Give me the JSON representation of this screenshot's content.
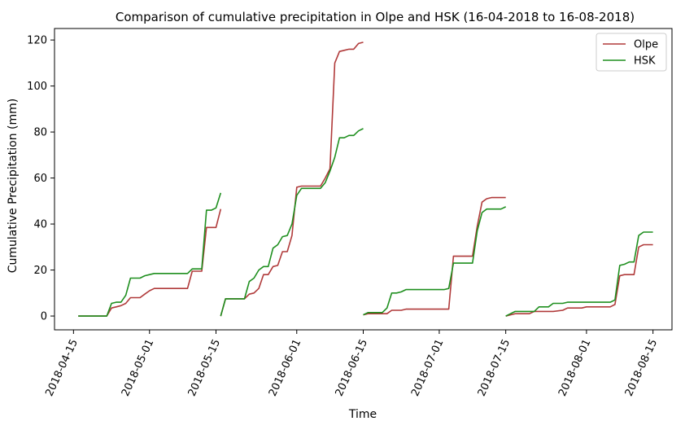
{
  "chart_data": {
    "type": "line",
    "title": "Comparison of cumulative precipitation in Olpe and HSK (16-04-2018 to 16-08-2018)",
    "xlabel": "Time",
    "ylabel": "Cumulative Precipitation (mm)",
    "xlim": [
      "2018-04-11",
      "2018-08-19"
    ],
    "ylim": [
      -6,
      125
    ],
    "x_ticks": [
      "2018-04-15",
      "2018-05-01",
      "2018-05-15",
      "2018-06-01",
      "2018-06-15",
      "2018-07-01",
      "2018-07-15",
      "2018-08-01",
      "2018-08-15"
    ],
    "y_ticks": [
      0,
      20,
      40,
      60,
      80,
      100,
      120
    ],
    "grid": false,
    "legend_position": "top-right",
    "series": [
      {
        "name": "Olpe",
        "color": "#b03a3a",
        "segments": [
          [
            [
              "2018-04-16",
              0
            ],
            [
              "2018-04-19",
              0
            ],
            [
              "2018-04-22",
              0
            ],
            [
              "2018-04-23",
              3.5
            ],
            [
              "2018-04-24",
              4
            ],
            [
              "2018-04-25",
              4.5
            ],
            [
              "2018-04-26",
              5.5
            ],
            [
              "2018-04-27",
              8
            ],
            [
              "2018-04-28",
              8
            ],
            [
              "2018-04-29",
              8
            ],
            [
              "2018-04-30",
              9.5
            ],
            [
              "2018-05-01",
              11
            ],
            [
              "2018-05-02",
              12
            ],
            [
              "2018-05-04",
              12
            ],
            [
              "2018-05-07",
              12
            ],
            [
              "2018-05-09",
              12
            ],
            [
              "2018-05-10",
              19.5
            ],
            [
              "2018-05-11",
              19.5
            ],
            [
              "2018-05-12",
              19.5
            ],
            [
              "2018-05-13",
              38.5
            ],
            [
              "2018-05-14",
              38.5
            ],
            [
              "2018-05-15",
              38.5
            ],
            [
              "2018-05-16",
              46.5
            ]
          ],
          [
            [
              "2018-05-16",
              0
            ],
            [
              "2018-05-17",
              7.5
            ],
            [
              "2018-05-18",
              7.5
            ],
            [
              "2018-05-19",
              7.5
            ],
            [
              "2018-05-21",
              7.5
            ],
            [
              "2018-05-22",
              9.5
            ],
            [
              "2018-05-23",
              10
            ],
            [
              "2018-05-24",
              12
            ],
            [
              "2018-05-25",
              18
            ],
            [
              "2018-05-26",
              18
            ],
            [
              "2018-05-27",
              21.5
            ],
            [
              "2018-05-28",
              22
            ],
            [
              "2018-05-29",
              28
            ],
            [
              "2018-05-30",
              28
            ],
            [
              "2018-05-31",
              35
            ],
            [
              "2018-06-01",
              56
            ],
            [
              "2018-06-02",
              56.5
            ],
            [
              "2018-06-05",
              56.5
            ],
            [
              "2018-06-06",
              56.5
            ],
            [
              "2018-06-07",
              60
            ],
            [
              "2018-06-08",
              64
            ],
            [
              "2018-06-09",
              110
            ],
            [
              "2018-06-10",
              115
            ],
            [
              "2018-06-11",
              115.5
            ],
            [
              "2018-06-12",
              116
            ],
            [
              "2018-06-13",
              116
            ],
            [
              "2018-06-14",
              118.5
            ],
            [
              "2018-06-15",
              119
            ]
          ],
          [
            [
              "2018-06-15",
              0.5
            ],
            [
              "2018-06-16",
              1
            ],
            [
              "2018-06-17",
              1
            ],
            [
              "2018-06-19",
              1
            ],
            [
              "2018-06-20",
              1
            ],
            [
              "2018-06-21",
              2.5
            ],
            [
              "2018-06-22",
              2.5
            ],
            [
              "2018-06-23",
              2.5
            ],
            [
              "2018-06-24",
              3
            ],
            [
              "2018-06-25",
              3
            ],
            [
              "2018-06-29",
              3
            ],
            [
              "2018-07-02",
              3
            ],
            [
              "2018-07-03",
              3
            ],
            [
              "2018-07-04",
              26
            ],
            [
              "2018-07-05",
              26
            ],
            [
              "2018-07-07",
              26
            ],
            [
              "2018-07-08",
              26
            ],
            [
              "2018-07-09",
              39
            ],
            [
              "2018-07-10",
              49.5
            ],
            [
              "2018-07-11",
              51
            ],
            [
              "2018-07-12",
              51.5
            ],
            [
              "2018-07-15",
              51.5
            ]
          ],
          [
            [
              "2018-07-15",
              0
            ],
            [
              "2018-07-16",
              0.5
            ],
            [
              "2018-07-17",
              1
            ],
            [
              "2018-07-19",
              1
            ],
            [
              "2018-07-20",
              1
            ],
            [
              "2018-07-21",
              2
            ],
            [
              "2018-07-22",
              2
            ],
            [
              "2018-07-25",
              2
            ],
            [
              "2018-07-27",
              2.5
            ],
            [
              "2018-07-28",
              3.5
            ],
            [
              "2018-07-29",
              3.5
            ],
            [
              "2018-07-30",
              3.5
            ],
            [
              "2018-07-31",
              3.5
            ],
            [
              "2018-08-01",
              4
            ],
            [
              "2018-08-05",
              4
            ],
            [
              "2018-08-06",
              4
            ],
            [
              "2018-08-07",
              5
            ],
            [
              "2018-08-08",
              17.5
            ],
            [
              "2018-08-09",
              18
            ],
            [
              "2018-08-10",
              18
            ],
            [
              "2018-08-11",
              18
            ],
            [
              "2018-08-12",
              30
            ],
            [
              "2018-08-13",
              31
            ],
            [
              "2018-08-14",
              31
            ],
            [
              "2018-08-15",
              31
            ]
          ]
        ]
      },
      {
        "name": "HSK",
        "color": "#1f8f1f",
        "segments": [
          [
            [
              "2018-04-16",
              0
            ],
            [
              "2018-04-19",
              0
            ],
            [
              "2018-04-21",
              0
            ],
            [
              "2018-04-22",
              0
            ],
            [
              "2018-04-23",
              5.5
            ],
            [
              "2018-04-24",
              6
            ],
            [
              "2018-04-25",
              6
            ],
            [
              "2018-04-26",
              9
            ],
            [
              "2018-04-27",
              16.5
            ],
            [
              "2018-04-28",
              16.5
            ],
            [
              "2018-04-29",
              16.5
            ],
            [
              "2018-04-30",
              17.5
            ],
            [
              "2018-05-01",
              18
            ],
            [
              "2018-05-02",
              18.5
            ],
            [
              "2018-05-05",
              18.5
            ],
            [
              "2018-05-07",
              18.5
            ],
            [
              "2018-05-09",
              18.5
            ],
            [
              "2018-05-10",
              20.5
            ],
            [
              "2018-05-11",
              20.5
            ],
            [
              "2018-05-12",
              20.5
            ],
            [
              "2018-05-13",
              46
            ],
            [
              "2018-05-14",
              46
            ],
            [
              "2018-05-15",
              47
            ],
            [
              "2018-05-16",
              53.5
            ]
          ],
          [
            [
              "2018-05-16",
              0
            ],
            [
              "2018-05-17",
              7.5
            ],
            [
              "2018-05-18",
              7.5
            ],
            [
              "2018-05-20",
              7.5
            ],
            [
              "2018-05-21",
              7.5
            ],
            [
              "2018-05-22",
              15
            ],
            [
              "2018-05-23",
              16.5
            ],
            [
              "2018-05-24",
              20
            ],
            [
              "2018-05-25",
              21.5
            ],
            [
              "2018-05-26",
              21.5
            ],
            [
              "2018-05-27",
              29.5
            ],
            [
              "2018-05-28",
              31
            ],
            [
              "2018-05-29",
              34.5
            ],
            [
              "2018-05-30",
              35
            ],
            [
              "2018-05-31",
              40
            ],
            [
              "2018-06-01",
              52.5
            ],
            [
              "2018-06-02",
              55.5
            ],
            [
              "2018-06-05",
              55.5
            ],
            [
              "2018-06-06",
              55.5
            ],
            [
              "2018-06-07",
              58
            ],
            [
              "2018-06-08",
              63
            ],
            [
              "2018-06-09",
              69
            ],
            [
              "2018-06-10",
              77.5
            ],
            [
              "2018-06-11",
              77.5
            ],
            [
              "2018-06-12",
              78.5
            ],
            [
              "2018-06-13",
              78.5
            ],
            [
              "2018-06-14",
              80.5
            ],
            [
              "2018-06-15",
              81.5
            ]
          ],
          [
            [
              "2018-06-15",
              0.5
            ],
            [
              "2018-06-16",
              1.5
            ],
            [
              "2018-06-18",
              1.5
            ],
            [
              "2018-06-19",
              1.5
            ],
            [
              "2018-06-20",
              3.5
            ],
            [
              "2018-06-21",
              10
            ],
            [
              "2018-06-22",
              10
            ],
            [
              "2018-06-23",
              10.5
            ],
            [
              "2018-06-24",
              11.5
            ],
            [
              "2018-06-25",
              11.5
            ],
            [
              "2018-06-29",
              11.5
            ],
            [
              "2018-07-02",
              11.5
            ],
            [
              "2018-07-03",
              12
            ],
            [
              "2018-07-04",
              23
            ],
            [
              "2018-07-05",
              23
            ],
            [
              "2018-07-07",
              23
            ],
            [
              "2018-07-08",
              23
            ],
            [
              "2018-07-09",
              37
            ],
            [
              "2018-07-10",
              45
            ],
            [
              "2018-07-11",
              46.5
            ],
            [
              "2018-07-12",
              46.5
            ],
            [
              "2018-07-14",
              46.5
            ],
            [
              "2018-07-15",
              47.5
            ]
          ],
          [
            [
              "2018-07-15",
              0
            ],
            [
              "2018-07-16",
              1
            ],
            [
              "2018-07-17",
              2
            ],
            [
              "2018-07-19",
              2
            ],
            [
              "2018-07-20",
              2
            ],
            [
              "2018-07-21",
              2
            ],
            [
              "2018-07-22",
              4
            ],
            [
              "2018-07-23",
              4
            ],
            [
              "2018-07-24",
              4
            ],
            [
              "2018-07-25",
              5.5
            ],
            [
              "2018-07-26",
              5.5
            ],
            [
              "2018-07-27",
              5.5
            ],
            [
              "2018-07-28",
              6
            ],
            [
              "2018-07-31",
              6
            ],
            [
              "2018-08-01",
              6
            ],
            [
              "2018-08-06",
              6
            ],
            [
              "2018-08-07",
              7
            ],
            [
              "2018-08-08",
              22
            ],
            [
              "2018-08-09",
              22.5
            ],
            [
              "2018-08-10",
              23.5
            ],
            [
              "2018-08-11",
              23.5
            ],
            [
              "2018-08-12",
              35
            ],
            [
              "2018-08-13",
              36.5
            ],
            [
              "2018-08-14",
              36.5
            ],
            [
              "2018-08-15",
              36.5
            ]
          ]
        ]
      }
    ]
  }
}
